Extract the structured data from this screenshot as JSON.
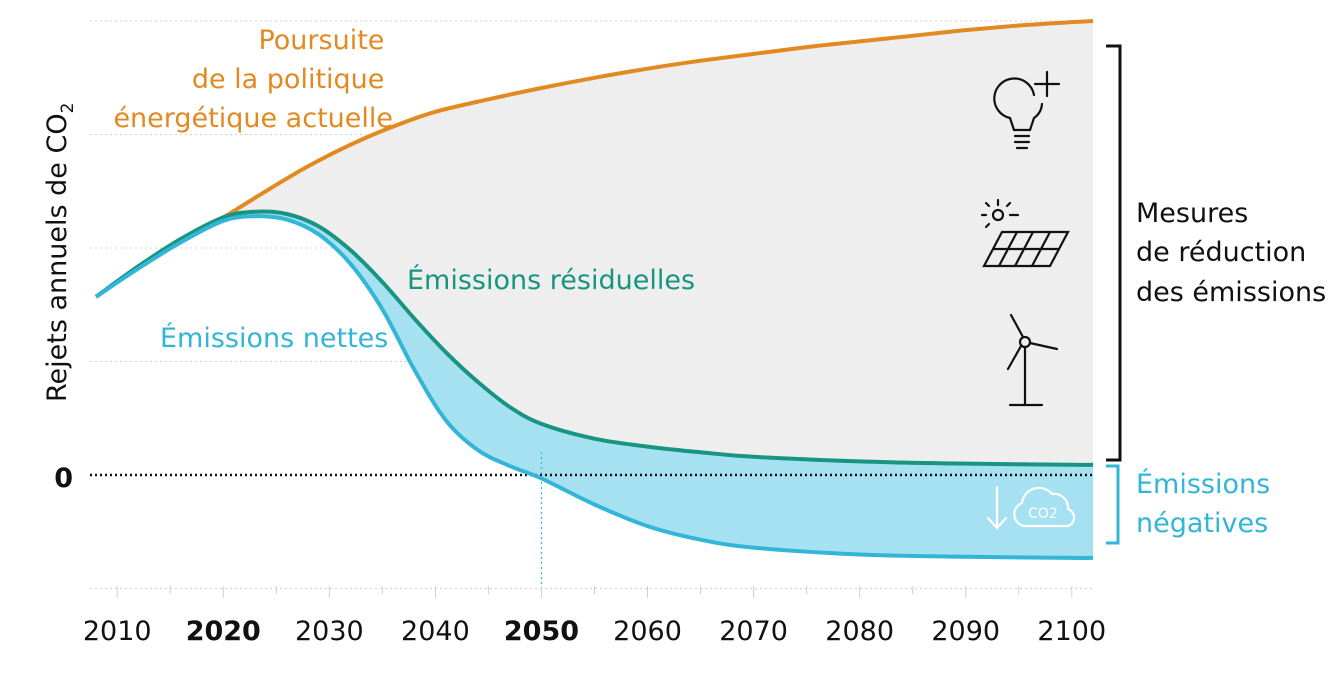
{
  "chart_data": {
    "type": "line",
    "title": "",
    "xlabel": "",
    "ylabel": "Rejets annuels de CO",
    "ylabel_subscript": "2",
    "xlim": [
      2008,
      2102
    ],
    "ylim": [
      -1.1,
      4.25
    ],
    "zero_label": "0",
    "x_ticks": [
      {
        "label": "2010",
        "value": 2010,
        "bold": false
      },
      {
        "label": "2020",
        "value": 2020,
        "bold": true
      },
      {
        "label": "2030",
        "value": 2030,
        "bold": false
      },
      {
        "label": "2040",
        "value": 2040,
        "bold": false
      },
      {
        "label": "2050",
        "value": 2050,
        "bold": true
      },
      {
        "label": "2060",
        "value": 2060,
        "bold": false
      },
      {
        "label": "2070",
        "value": 2070,
        "bold": false
      },
      {
        "label": "2080",
        "value": 2080,
        "bold": false
      },
      {
        "label": "2090",
        "value": 2090,
        "bold": false
      },
      {
        "label": "2100",
        "value": 2100,
        "bold": false
      }
    ],
    "grid": true,
    "reference_year": 2050,
    "series": [
      {
        "key": "current",
        "name_lines": [
          "Poursuite",
          "de la politique",
          "énergétique actuelle"
        ],
        "color": "#E28A22",
        "x": [
          2008,
          2012,
          2016,
          2020,
          2024,
          2028,
          2032,
          2036,
          2040,
          2045,
          2050,
          2055,
          2060,
          2065,
          2070,
          2075,
          2080,
          2085,
          2090,
          2095,
          2100,
          2102
        ],
        "y": [
          1.57,
          1.83,
          2.06,
          2.27,
          2.5,
          2.72,
          2.91,
          3.07,
          3.2,
          3.31,
          3.41,
          3.5,
          3.58,
          3.65,
          3.71,
          3.77,
          3.82,
          3.87,
          3.92,
          3.96,
          3.99,
          4.0
        ]
      },
      {
        "key": "residual",
        "name": "Émissions résiduelles",
        "color": "#179580",
        "x": [
          2008,
          2012,
          2016,
          2020,
          2023,
          2026,
          2029,
          2032,
          2035,
          2038,
          2041,
          2044,
          2047,
          2050,
          2055,
          2060,
          2065,
          2070,
          2080,
          2090,
          2100,
          2102
        ],
        "y": [
          1.57,
          1.84,
          2.08,
          2.27,
          2.32,
          2.3,
          2.19,
          1.98,
          1.7,
          1.38,
          1.08,
          0.82,
          0.6,
          0.45,
          0.32,
          0.25,
          0.2,
          0.16,
          0.12,
          0.1,
          0.09,
          0.09
        ]
      },
      {
        "key": "net",
        "name": "Émissions nettes",
        "color": "#33B5D8",
        "x": [
          2008,
          2012,
          2016,
          2020,
          2023,
          2026,
          2029,
          2032,
          2035,
          2038,
          2041,
          2044,
          2047,
          2050,
          2055,
          2060,
          2065,
          2070,
          2080,
          2090,
          2100,
          2102
        ],
        "y": [
          1.57,
          1.82,
          2.05,
          2.24,
          2.28,
          2.25,
          2.12,
          1.86,
          1.46,
          0.93,
          0.48,
          0.22,
          0.08,
          -0.03,
          -0.26,
          -0.45,
          -0.57,
          -0.64,
          -0.7,
          -0.72,
          -0.73,
          -0.73
        ]
      }
    ],
    "annotations": {
      "reduction": [
        "Mesures",
        "de réduction",
        "des émissions"
      ],
      "negative": [
        "Émissions",
        "négatives"
      ],
      "cloud_text": "CO2"
    },
    "colors": {
      "reduction_fill": "#EEEEEE",
      "negative_fill": "#A6E1F2",
      "bracket_reduction": "#111111",
      "bracket_negative": "#33B5D8",
      "icons": "#111111",
      "negative_icon": "#FFFFFF",
      "grid": "#D0D0D0"
    },
    "icons": [
      "lightbulb-plus-icon",
      "solar-panel-icon",
      "wind-turbine-icon",
      "arrow-down-icon",
      "co2-cloud-icon"
    ]
  }
}
